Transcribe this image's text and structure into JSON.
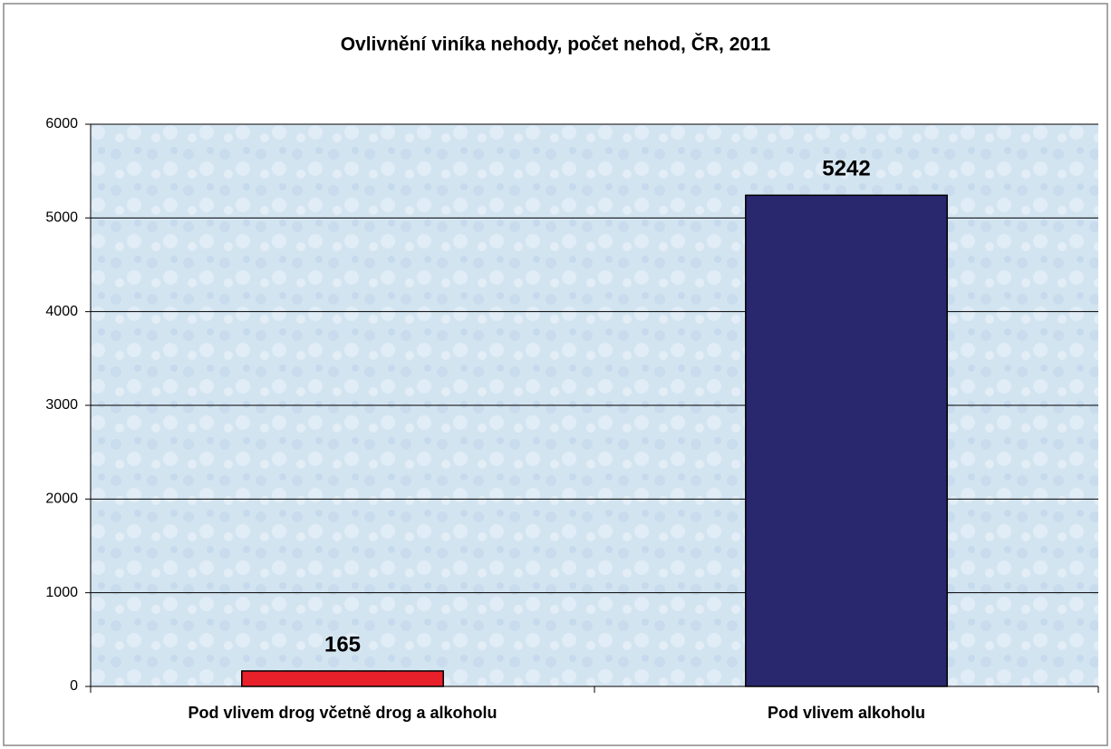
{
  "chart_data": {
    "type": "bar",
    "title": "Ovlivnění viníka nehody, počet nehod, ČR, 2011",
    "categories": [
      "Pod vlivem drog včetně drog a alkoholu",
      "Pod vlivem alkoholu"
    ],
    "values": [
      165,
      5242
    ],
    "colors": [
      "#e8202a",
      "#29286e"
    ],
    "ylim": [
      0,
      6000
    ],
    "yticks": [
      0,
      1000,
      2000,
      3000,
      4000,
      5000,
      6000
    ],
    "grid": true
  }
}
